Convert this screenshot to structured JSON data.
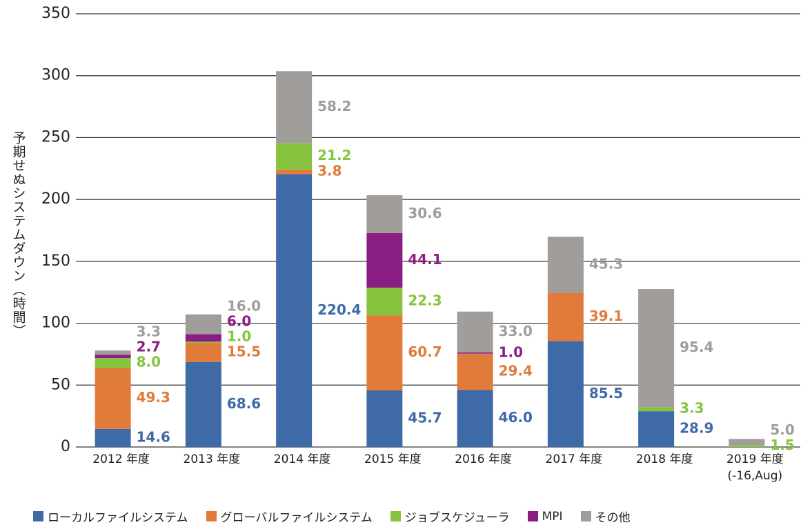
{
  "chart_data": {
    "type": "stacked_bar",
    "y_label": "予期せぬシステムダウン（時間）",
    "categories": [
      "2012 年度",
      "2013 年度",
      "2014 年度",
      "2015 年度",
      "2016 年度",
      "2017 年度",
      "2018 年度",
      "2019 年度\n(-16,Aug)"
    ],
    "series": [
      {
        "name": "ローカルファイルシステム",
        "color": "#3f6aa8",
        "values": [
          14.6,
          68.6,
          220.4,
          45.7,
          46.0,
          85.5,
          28.9,
          null
        ],
        "value_labels": [
          "14.6",
          "68.6",
          "220.4",
          "45.7",
          "46.0",
          "85.5",
          "28.9",
          null
        ]
      },
      {
        "name": "グローバルファイルシステム",
        "color": "#e07b3c",
        "values": [
          49.3,
          15.5,
          3.8,
          60.7,
          29.4,
          39.1,
          null,
          null
        ],
        "value_labels": [
          "49.3",
          "15.5",
          "3.8",
          "60.7",
          "29.4",
          "39.1",
          null,
          null
        ]
      },
      {
        "name": "ジョブスケジューラ",
        "color": "#86c440",
        "values": [
          8.0,
          1.0,
          21.2,
          22.3,
          null,
          null,
          3.3,
          1.5
        ],
        "value_labels": [
          "8.0",
          "1.0",
          "21.2",
          "22.3",
          null,
          null,
          "3.3",
          "1.5"
        ]
      },
      {
        "name": "MPI",
        "color": "#8b1e82",
        "values": [
          2.7,
          6.0,
          null,
          44.1,
          1.0,
          null,
          null,
          null
        ],
        "value_labels": [
          "2.7",
          "6.0",
          null,
          "44.1",
          "1.0",
          null,
          null,
          null
        ]
      },
      {
        "name": "その他",
        "color": "#a19d9a",
        "values": [
          3.3,
          16.0,
          58.2,
          30.6,
          33.0,
          45.3,
          95.4,
          5.0
        ],
        "value_labels": [
          "3.3",
          "16.0",
          "58.2",
          "30.6",
          "33.0",
          "45.3",
          "95.4",
          "5.0"
        ]
      }
    ],
    "ylim": [
      0,
      350
    ],
    "yticks": [
      0,
      50,
      100,
      150,
      200,
      250,
      300,
      350
    ],
    "grid": true,
    "legend": "bottom"
  }
}
